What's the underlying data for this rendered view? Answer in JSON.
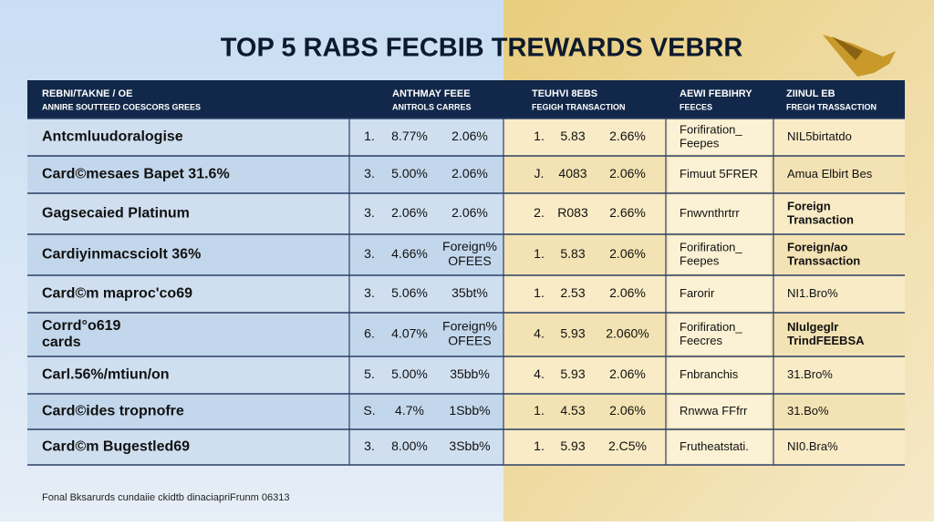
{
  "header": {
    "title": "TOP 5 RABS FECBIB TREWARDS  VEBRR"
  },
  "table": {
    "columns": [
      [
        "REBNI/TAKNE / OE",
        "ANNIRE SOUTTEED COESCORS GREES"
      ],
      [
        "ANTHMAY FEEE",
        "ANITROLS CARRES"
      ],
      [
        "TEUHVI 8EBS",
        "FEGIGH TRANSACTION"
      ],
      [
        "AEWI FEBIHRY",
        "FEECES"
      ],
      [
        "ZIINUL EB",
        "FREGH TRASSACTION"
      ]
    ],
    "rows": [
      [
        [
          "Antcmluudoralogise"
        ],
        [
          "1."
        ],
        [
          "8.77%"
        ],
        [
          "2.06%"
        ],
        [
          "1."
        ],
        [
          "5.83"
        ],
        [
          "2.66%"
        ],
        [
          "Forifiration_",
          "Feepes"
        ],
        [
          "NIL5birtatdo"
        ]
      ],
      [
        [
          "Card©mesaes Bapet 31.6%"
        ],
        [
          "3."
        ],
        [
          "5.00%"
        ],
        [
          "2.06%"
        ],
        [
          "J."
        ],
        [
          "4083"
        ],
        [
          "2.06%"
        ],
        [
          "Fimuut 5FRER"
        ],
        [
          "Amua Elbirt Bes"
        ]
      ],
      [
        [
          "Gagsecaied Platinum"
        ],
        [
          "3."
        ],
        [
          "2.06%"
        ],
        [
          "2.06%"
        ],
        [
          "2."
        ],
        [
          "R083"
        ],
        [
          "2.66%"
        ],
        [
          "Fnwvnthrtrr"
        ],
        [
          "Foreign",
          "Transaction"
        ]
      ],
      [
        [
          "Cardiyinmacsciolt 36%"
        ],
        [
          "3."
        ],
        [
          "4.66%"
        ],
        [
          "Foreign%",
          "OFEES"
        ],
        [
          "1."
        ],
        [
          "5.83"
        ],
        [
          "2.06%"
        ],
        [
          "Forifiration_",
          "Feepes"
        ],
        [
          "Foreign/ao",
          "Transsaction"
        ]
      ],
      [
        [
          "Card©m maproc'co69"
        ],
        [
          "3."
        ],
        [
          "5.06%"
        ],
        [
          "35bt%"
        ],
        [
          "1."
        ],
        [
          "2.53"
        ],
        [
          "2.06%"
        ],
        [
          "Farorir"
        ],
        [
          "NI1.Bro%"
        ]
      ],
      [
        [
          "Corrd°o619",
          "cards"
        ],
        [
          "6."
        ],
        [
          "4.07%"
        ],
        [
          "Foreign%",
          "OFEES"
        ],
        [
          "4."
        ],
        [
          "5.93"
        ],
        [
          "2.060%"
        ],
        [
          "Forifiration_",
          "Feecres"
        ],
        [
          "Nlulgeglr",
          "TrindFEEBSA"
        ]
      ],
      [
        [
          "Carl.56%/mtiun/on"
        ],
        [
          "5."
        ],
        [
          "5.00%"
        ],
        [
          "35bb%"
        ],
        [
          "4."
        ],
        [
          "5.93"
        ],
        [
          "2.06%"
        ],
        [
          "Fnbranchis"
        ],
        [
          "31.Bro%"
        ]
      ],
      [
        [
          "Card©ides tropnofre"
        ],
        [
          "S."
        ],
        [
          "4.7%"
        ],
        [
          "1Sbb%"
        ],
        [
          "1."
        ],
        [
          "4.53"
        ],
        [
          "2.06%"
        ],
        [
          "Rnwwa FFfrr"
        ],
        [
          "31.Bo%"
        ]
      ],
      [
        [
          "Card©m Bugestled69"
        ],
        [
          "3."
        ],
        [
          "8.00%"
        ],
        [
          "3Sbb%"
        ],
        [
          "1."
        ],
        [
          "5.93"
        ],
        [
          "2.C5%"
        ],
        [
          "Frutheatstati."
        ],
        [
          "NI0.Bra%"
        ]
      ]
    ]
  },
  "footer": {
    "note": "Fonal Bksarurds cundaiie ckidtb dinaciapriFrunm 06313"
  }
}
